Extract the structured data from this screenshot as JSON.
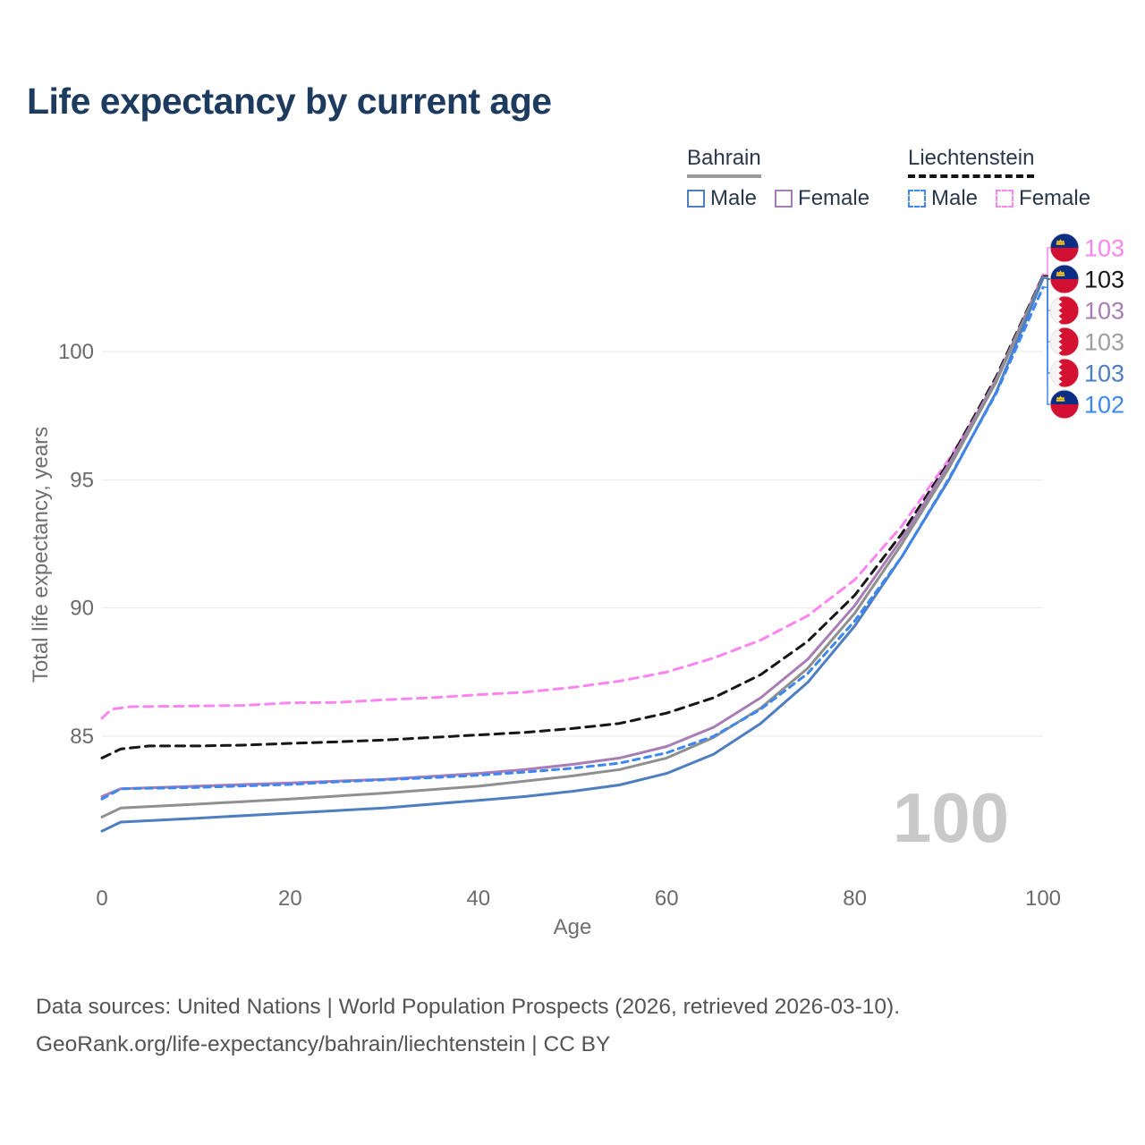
{
  "title": "Life expectancy by current age",
  "legend": {
    "groups": [
      {
        "name": "Bahrain",
        "line_style": "solid",
        "underline_color": "#9a9a9a",
        "items": [
          {
            "label": "Male",
            "color": "#4d7ec0",
            "dashed": false
          },
          {
            "label": "Female",
            "color": "#a87cb5",
            "dashed": false
          }
        ]
      },
      {
        "name": "Liechtenstein",
        "line_style": "dashed",
        "underline_color": "#141414",
        "items": [
          {
            "label": "Male",
            "color": "#3d87f5",
            "dashed": true
          },
          {
            "label": "Female",
            "color": "#fb85f0",
            "dashed": true
          }
        ]
      }
    ]
  },
  "chart_data": {
    "type": "line",
    "title": "Life expectancy by current age",
    "xlabel": "Age",
    "ylabel": "Total life expectancy, years",
    "xlim": [
      0,
      100
    ],
    "ylim": [
      81,
      103.5
    ],
    "xticks": [
      0,
      20,
      40,
      60,
      80,
      100
    ],
    "yticks": [
      85,
      90,
      95,
      100
    ],
    "grid": "horizontal-only",
    "gridline_color": "#e9e9e9",
    "watermark_age": "100",
    "series": [
      {
        "id": "liechtenstein-female",
        "name": "Liechtenstein Female",
        "country": "liechtenstein",
        "sex": "female",
        "color": "#fb85f0",
        "label_color": "#fb85f0",
        "dash": "10 7",
        "end_label": "103",
        "rank": 0,
        "points": [
          [
            0,
            85.7
          ],
          [
            1,
            86.05
          ],
          [
            3,
            86.15
          ],
          [
            10,
            86.18
          ],
          [
            15,
            86.2
          ],
          [
            20,
            86.3
          ],
          [
            25,
            86.32
          ],
          [
            30,
            86.42
          ],
          [
            35,
            86.5
          ],
          [
            40,
            86.62
          ],
          [
            45,
            86.72
          ],
          [
            50,
            86.9
          ],
          [
            55,
            87.15
          ],
          [
            60,
            87.5
          ],
          [
            65,
            88.05
          ],
          [
            70,
            88.75
          ],
          [
            75,
            89.7
          ],
          [
            80,
            91.1
          ],
          [
            85,
            93.2
          ],
          [
            90,
            95.8
          ],
          [
            95,
            98.8
          ],
          [
            100,
            103.0
          ]
        ]
      },
      {
        "id": "liechtenstein-total",
        "name": "Liechtenstein Both sexes",
        "country": "liechtenstein",
        "sex": "both",
        "color": "#161616",
        "label_color": "#161616",
        "dash": "10 7",
        "end_label": "103",
        "rank": 1,
        "points": [
          [
            0,
            84.15
          ],
          [
            2,
            84.5
          ],
          [
            5,
            84.62
          ],
          [
            10,
            84.62
          ],
          [
            15,
            84.65
          ],
          [
            20,
            84.72
          ],
          [
            25,
            84.78
          ],
          [
            30,
            84.85
          ],
          [
            35,
            84.95
          ],
          [
            40,
            85.05
          ],
          [
            45,
            85.15
          ],
          [
            50,
            85.3
          ],
          [
            55,
            85.5
          ],
          [
            60,
            85.9
          ],
          [
            65,
            86.5
          ],
          [
            70,
            87.4
          ],
          [
            75,
            88.7
          ],
          [
            80,
            90.5
          ],
          [
            85,
            92.9
          ],
          [
            90,
            95.7
          ],
          [
            95,
            99.0
          ],
          [
            100,
            102.95
          ]
        ]
      },
      {
        "id": "bahrain-female",
        "name": "Bahrain Female",
        "country": "bahrain",
        "sex": "female",
        "color": "#a87cb5",
        "label_color": "#a87cb5",
        "dash": null,
        "end_label": "103",
        "rank": 2,
        "points": [
          [
            0,
            82.65
          ],
          [
            2,
            82.95
          ],
          [
            10,
            83.05
          ],
          [
            20,
            83.18
          ],
          [
            30,
            83.32
          ],
          [
            40,
            83.55
          ],
          [
            45,
            83.7
          ],
          [
            50,
            83.9
          ],
          [
            55,
            84.15
          ],
          [
            60,
            84.6
          ],
          [
            65,
            85.35
          ],
          [
            70,
            86.5
          ],
          [
            75,
            88.0
          ],
          [
            80,
            90.1
          ],
          [
            85,
            92.7
          ],
          [
            90,
            95.6
          ],
          [
            95,
            98.9
          ],
          [
            100,
            102.9
          ]
        ]
      },
      {
        "id": "bahrain-total",
        "name": "Bahrain Both sexes",
        "country": "bahrain",
        "sex": "both",
        "color": "#8f8f8f",
        "label_color": "#9e9e9e",
        "dash": null,
        "end_label": "103",
        "rank": 3,
        "points": [
          [
            0,
            81.85
          ],
          [
            2,
            82.2
          ],
          [
            10,
            82.35
          ],
          [
            20,
            82.55
          ],
          [
            30,
            82.78
          ],
          [
            40,
            83.05
          ],
          [
            50,
            83.45
          ],
          [
            55,
            83.7
          ],
          [
            60,
            84.15
          ],
          [
            65,
            84.95
          ],
          [
            70,
            86.1
          ],
          [
            75,
            87.65
          ],
          [
            80,
            89.8
          ],
          [
            85,
            92.5
          ],
          [
            90,
            95.45
          ],
          [
            95,
            98.8
          ],
          [
            100,
            102.9
          ]
        ]
      },
      {
        "id": "bahrain-male",
        "name": "Bahrain Male",
        "country": "bahrain",
        "sex": "male",
        "color": "#4d7ec0",
        "label_color": "#4d7ec0",
        "dash": null,
        "end_label": "103",
        "rank": 4,
        "points": [
          [
            0,
            81.3
          ],
          [
            2,
            81.65
          ],
          [
            10,
            81.8
          ],
          [
            20,
            82.0
          ],
          [
            30,
            82.2
          ],
          [
            40,
            82.5
          ],
          [
            45,
            82.65
          ],
          [
            50,
            82.85
          ],
          [
            55,
            83.1
          ],
          [
            60,
            83.55
          ],
          [
            65,
            84.3
          ],
          [
            70,
            85.5
          ],
          [
            75,
            87.1
          ],
          [
            80,
            89.3
          ],
          [
            85,
            92.0
          ],
          [
            90,
            95.0
          ],
          [
            95,
            98.4
          ],
          [
            100,
            102.85
          ]
        ]
      },
      {
        "id": "liechtenstein-male",
        "name": "Liechtenstein Male",
        "country": "liechtenstein",
        "sex": "male",
        "color": "#3d87f5",
        "label_color": "#3d87f5",
        "dash": "7 6",
        "end_label": "102",
        "rank": 5,
        "points": [
          [
            0,
            82.55
          ],
          [
            2,
            82.95
          ],
          [
            10,
            83.0
          ],
          [
            20,
            83.12
          ],
          [
            25,
            83.22
          ],
          [
            30,
            83.3
          ],
          [
            35,
            83.38
          ],
          [
            40,
            83.48
          ],
          [
            45,
            83.6
          ],
          [
            50,
            83.75
          ],
          [
            55,
            83.95
          ],
          [
            60,
            84.35
          ],
          [
            65,
            85.0
          ],
          [
            70,
            86.05
          ],
          [
            75,
            87.45
          ],
          [
            80,
            89.5
          ],
          [
            85,
            92.0
          ],
          [
            90,
            95.05
          ],
          [
            95,
            98.35
          ],
          [
            100,
            102.5
          ]
        ]
      }
    ]
  },
  "footer": {
    "line1": "Data sources: United Nations | World Population Prospects (2026, retrieved 2026-03-10).",
    "line2": "GeoRank.org/life-expectancy/bahrain/liechtenstein | CC BY"
  }
}
